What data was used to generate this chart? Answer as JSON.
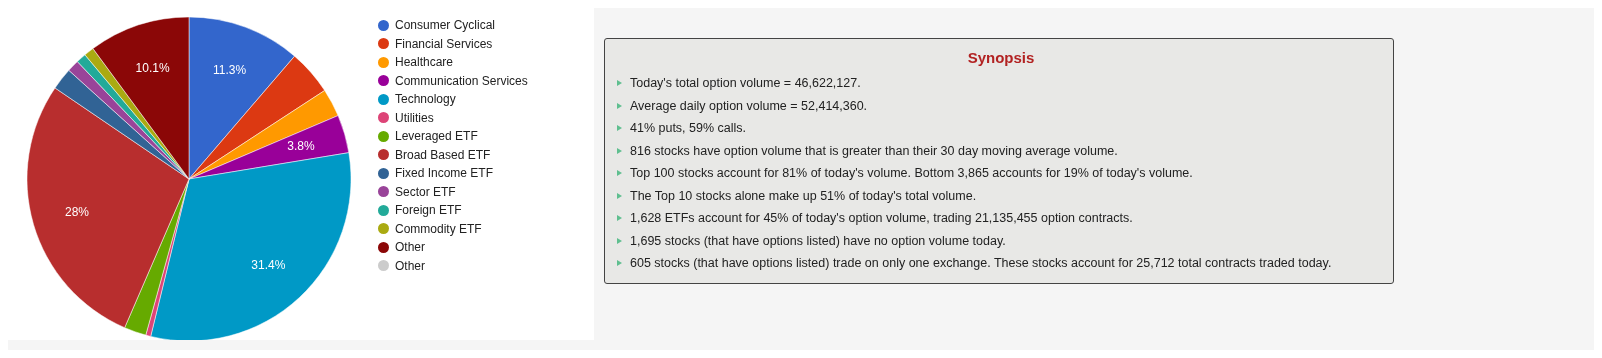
{
  "chart_data": [
    {
      "type": "pie",
      "categories": [
        "Consumer Cyclical",
        "Financial Services",
        "Healthcare",
        "Communication Services",
        "Technology",
        "Utilities",
        "Leveraged ETF",
        "Broad Based ETF",
        "Fixed Income ETF",
        "Sector ETF",
        "Foreign ETF",
        "Commodity ETF",
        "Other",
        "Other"
      ],
      "values": [
        11.3,
        4.5,
        2.8,
        3.8,
        31.4,
        0.5,
        2.2,
        28,
        2.2,
        1.2,
        1,
        1,
        10.1,
        0
      ],
      "colors": [
        "#3366cc",
        "#dc3912",
        "#ff9900",
        "#990099",
        "#0099c6",
        "#dd4477",
        "#66aa00",
        "#b82e2e",
        "#316395",
        "#994499",
        "#22aa99",
        "#aaaa11",
        "#8b0707",
        "#cccccc"
      ],
      "value_labels": [
        "11.3%",
        null,
        null,
        "3.8%",
        "31.4%",
        null,
        null,
        "28%",
        null,
        null,
        null,
        null,
        "10.1%",
        null
      ],
      "legend": "right"
    },
    {
      "type": "other",
      "title": "Synopsis",
      "annotations": [
        "Today's total option volume = 46,622,127.",
        "Average daily option volume = 52,414,360.",
        "41% puts, 59% calls.",
        "816 stocks have option volume that is greater than their 30 day moving average volume.",
        "Top 100 stocks account for 81% of today's volume. Bottom 3,865 accounts for 19% of today's volume.",
        "The Top 10 stocks alone make up 51% of today's total volume.",
        "1,628 ETFs account for 45% of today's option volume, trading 21,135,455 option contracts.",
        "1,695 stocks (that have options listed) have no option volume today.",
        "605 stocks (that have options listed) trade on only one exchange. These stocks account for 25,712 total contracts traded today."
      ]
    }
  ]
}
